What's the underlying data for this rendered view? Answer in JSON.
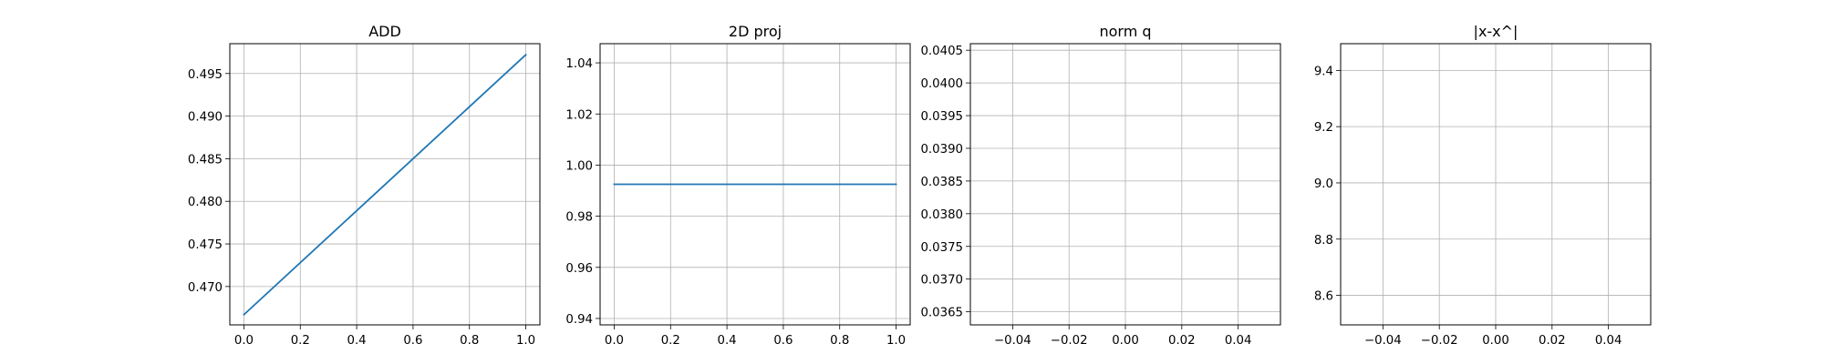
{
  "chart_data": [
    {
      "type": "line",
      "title": "ADD",
      "xlabel": "",
      "ylabel": "",
      "grid": true,
      "xlim": [
        -0.05,
        1.05
      ],
      "ylim": [
        0.4655,
        0.4985
      ],
      "xticks": [
        "0.0",
        "0.2",
        "0.4",
        "0.6",
        "0.8",
        "1.0"
      ],
      "yticks": [
        "0.470",
        "0.475",
        "0.480",
        "0.485",
        "0.490",
        "0.495"
      ],
      "series": [
        {
          "color": "#1f77b4",
          "x": [
            0,
            1
          ],
          "y": [
            0.4667,
            0.4972
          ]
        }
      ]
    },
    {
      "type": "line",
      "title": "2D proj",
      "xlabel": "",
      "ylabel": "",
      "grid": true,
      "xlim": [
        -0.05,
        1.05
      ],
      "ylim": [
        0.9375,
        1.0475
      ],
      "xticks": [
        "0.0",
        "0.2",
        "0.4",
        "0.6",
        "0.8",
        "1.0"
      ],
      "yticks": [
        "0.94",
        "0.96",
        "0.98",
        "1.00",
        "1.02",
        "1.04"
      ],
      "series": [
        {
          "color": "#1f77b4",
          "x": [
            0,
            1
          ],
          "y": [
            0.9925,
            0.9925
          ]
        }
      ]
    },
    {
      "type": "line",
      "title": "norm q",
      "xlabel": "",
      "ylabel": "",
      "grid": true,
      "xlim": [
        -0.055,
        0.055
      ],
      "ylim": [
        0.0363,
        0.0406
      ],
      "xticks": [
        "−0.04",
        "−0.02",
        "0.00",
        "0.02",
        "0.04"
      ],
      "yticks": [
        "0.0365",
        "0.0370",
        "0.0375",
        "0.0380",
        "0.0385",
        "0.0390",
        "0.0395",
        "0.0400",
        "0.0405"
      ],
      "series": []
    },
    {
      "type": "line",
      "title": "|x-x^|",
      "xlabel": "",
      "ylabel": "",
      "grid": true,
      "xlim": [
        -0.055,
        0.055
      ],
      "ylim": [
        8.495,
        9.495
      ],
      "xticks": [
        "−0.04",
        "−0.02",
        "0.00",
        "0.02",
        "0.04"
      ],
      "yticks": [
        "8.6",
        "8.8",
        "9.0",
        "9.2",
        "9.4"
      ],
      "series": []
    }
  ]
}
